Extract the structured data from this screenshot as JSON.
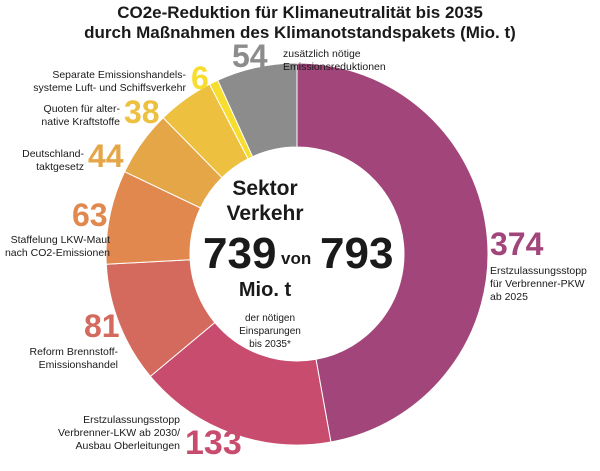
{
  "title_line1": "CO2e-Reduktion für Klimaneutralität bis 2035",
  "title_line2": "durch Maßnahmen des Klimanotstandspakets (Mio. t)",
  "center": {
    "sektor_line1": "Sektor",
    "sektor_line2": "Verkehr",
    "value": "739",
    "von": "von",
    "total": "793",
    "unit": "Mio. t",
    "desc_line1": "der nötigen Einsparungen",
    "desc_line2": "bis 2035*"
  },
  "chart_data": {
    "type": "pie",
    "total": 793,
    "slices": [
      {
        "value": 374,
        "value_label": "374",
        "label_lines": [
          "Erstzulassungsstopp",
          "für Verbrenner-PKW",
          "ab 2025"
        ],
        "color": "#a2457a"
      },
      {
        "value": 133,
        "value_label": "133",
        "label_lines": [
          "Erstzulassungsstopp",
          "Verbrenner-LKW ab 2030/",
          "Ausbau Oberleitungen"
        ],
        "color": "#c84c6e"
      },
      {
        "value": 81,
        "value_label": "81",
        "label_lines": [
          "Reform Brennstoff-",
          "Emissionshandel"
        ],
        "color": "#d46a5e"
      },
      {
        "value": 63,
        "value_label": "63",
        "label_lines": [
          "Staffelung LKW-Maut",
          "nach CO2-Emissionen"
        ],
        "color": "#e0884e"
      },
      {
        "value": 44,
        "value_label": "44",
        "label_lines": [
          "Deutschland-",
          "taktgesetz"
        ],
        "color": "#e5a648"
      },
      {
        "value": 38,
        "value_label": "38",
        "label_lines": [
          "Quoten für alter-",
          "native Kraftstoffe"
        ],
        "color": "#edc13f"
      },
      {
        "value": 6,
        "value_label": "6",
        "label_lines": [
          "Separate Emissionshandels-",
          "systeme Luft- und Schiffsverkehr"
        ],
        "color": "#f6dd2e"
      },
      {
        "value": 54,
        "value_label": "54",
        "label_lines": [
          "zusätzlich nötige",
          "Emissionsreduktionen"
        ],
        "color": "#8c8c8c"
      }
    ]
  }
}
